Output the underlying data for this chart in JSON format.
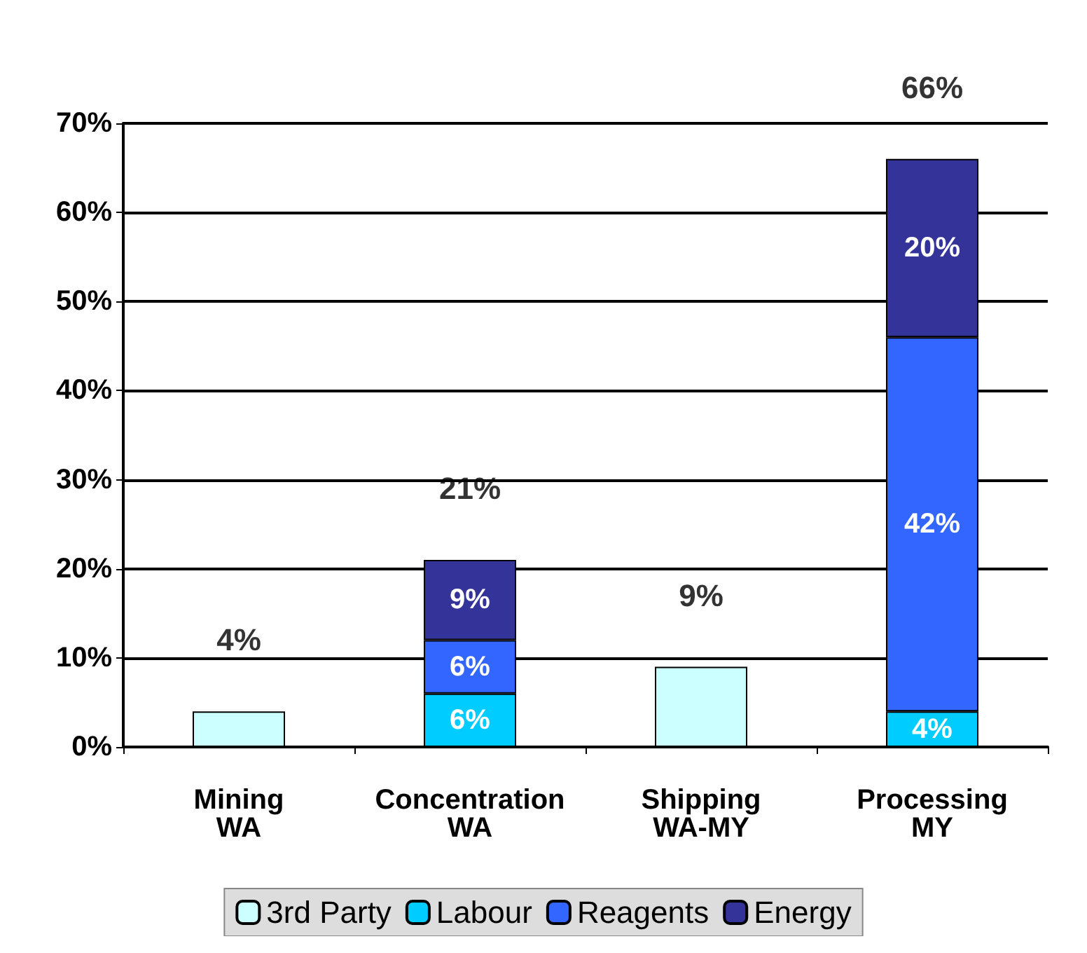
{
  "chart_data": {
    "type": "bar",
    "stacked": true,
    "categories": [
      "Mining\nWA",
      "Concentration\nWA",
      "Shipping\nWA-MY",
      "Processing\nMY"
    ],
    "series": [
      {
        "name": "3rd Party",
        "color": "#ccffff",
        "values": [
          4,
          null,
          9,
          null
        ]
      },
      {
        "name": "Labour",
        "color": "#00ccff",
        "values": [
          null,
          6,
          null,
          4
        ],
        "value_labels": [
          null,
          "6%",
          null,
          "4%"
        ]
      },
      {
        "name": "Reagents",
        "color": "#3366ff",
        "values": [
          null,
          6,
          null,
          42
        ],
        "value_labels": [
          null,
          "6%",
          null,
          "42%"
        ]
      },
      {
        "name": "Energy",
        "color": "#333399",
        "values": [
          null,
          9,
          null,
          20
        ],
        "value_labels": [
          null,
          "9%",
          null,
          "20%"
        ]
      }
    ],
    "totals": [
      "4%",
      "21%",
      "9%",
      "66%"
    ],
    "ylim": [
      0,
      70
    ],
    "yticks": [
      {
        "value": 0,
        "label": "0%"
      },
      {
        "value": 10,
        "label": "10%"
      },
      {
        "value": 20,
        "label": "20%"
      },
      {
        "value": 30,
        "label": "30%"
      },
      {
        "value": 40,
        "label": "40%"
      },
      {
        "value": 50,
        "label": "50%"
      },
      {
        "value": 60,
        "label": "60%"
      },
      {
        "value": 70,
        "label": "70%"
      }
    ],
    "grid": "y",
    "legend": "bottom"
  }
}
